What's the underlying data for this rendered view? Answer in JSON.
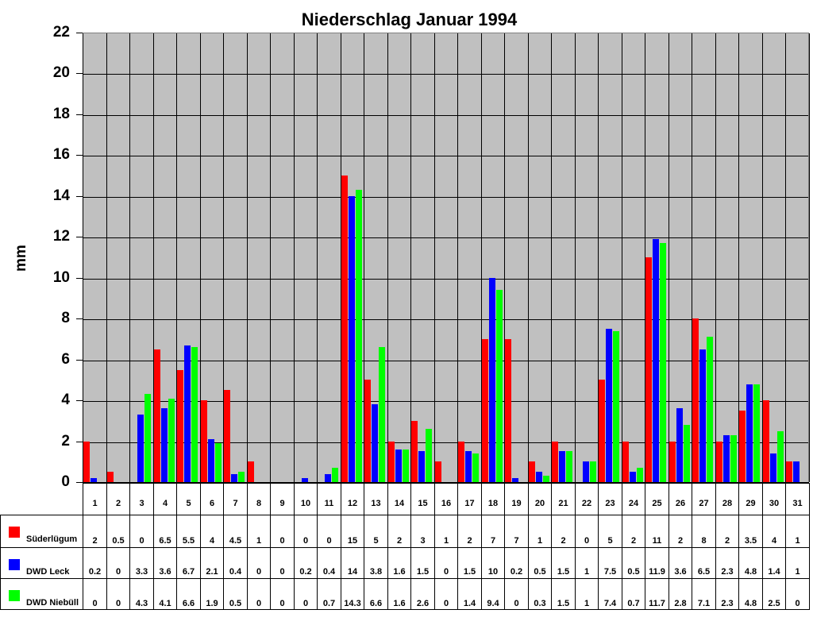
{
  "chart_data": {
    "type": "bar",
    "title": "Niederschlag Januar 1994",
    "xlabel": "",
    "ylabel": "mm",
    "ylim": [
      0,
      22
    ],
    "yticks": [
      0,
      2,
      4,
      6,
      8,
      10,
      12,
      14,
      16,
      18,
      20,
      22
    ],
    "grid": true,
    "legend_position": "table-left",
    "categories": [
      "1",
      "2",
      "3",
      "4",
      "5",
      "6",
      "7",
      "8",
      "9",
      "10",
      "11",
      "12",
      "13",
      "14",
      "15",
      "16",
      "17",
      "18",
      "19",
      "20",
      "21",
      "22",
      "23",
      "24",
      "25",
      "26",
      "27",
      "28",
      "29",
      "30",
      "31"
    ],
    "series": [
      {
        "name": "Süderlügum",
        "color": "#ff0000",
        "values": [
          2,
          0.5,
          0,
          6.5,
          5.5,
          4,
          4.5,
          1,
          0,
          0,
          0,
          15,
          5,
          2,
          3,
          1,
          2,
          7,
          7,
          1,
          2,
          0,
          5,
          2,
          11,
          2,
          8,
          2,
          3.5,
          4,
          1
        ]
      },
      {
        "name": "DWD Leck",
        "color": "#0000ff",
        "values": [
          0.2,
          0,
          3.3,
          3.6,
          6.7,
          2.1,
          0.4,
          0,
          0,
          0.2,
          0.4,
          14,
          3.8,
          1.6,
          1.5,
          0,
          1.5,
          10,
          0.2,
          0.5,
          1.5,
          1,
          7.5,
          0.5,
          11.9,
          3.6,
          6.5,
          2.3,
          4.8,
          1.4,
          1
        ]
      },
      {
        "name": "DWD Niebüll",
        "color": "#00ff00",
        "values": [
          0,
          0,
          4.3,
          4.1,
          6.6,
          1.9,
          0.5,
          0,
          0,
          0,
          0.7,
          14.3,
          6.6,
          1.6,
          2.6,
          0,
          1.4,
          9.4,
          0,
          0.3,
          1.5,
          1,
          7.4,
          0.7,
          11.7,
          2.8,
          7.1,
          2.3,
          4.8,
          2.5,
          0
        ]
      }
    ]
  },
  "colors": {
    "plot_background": "#c0c0c0",
    "grid": "#000000"
  }
}
